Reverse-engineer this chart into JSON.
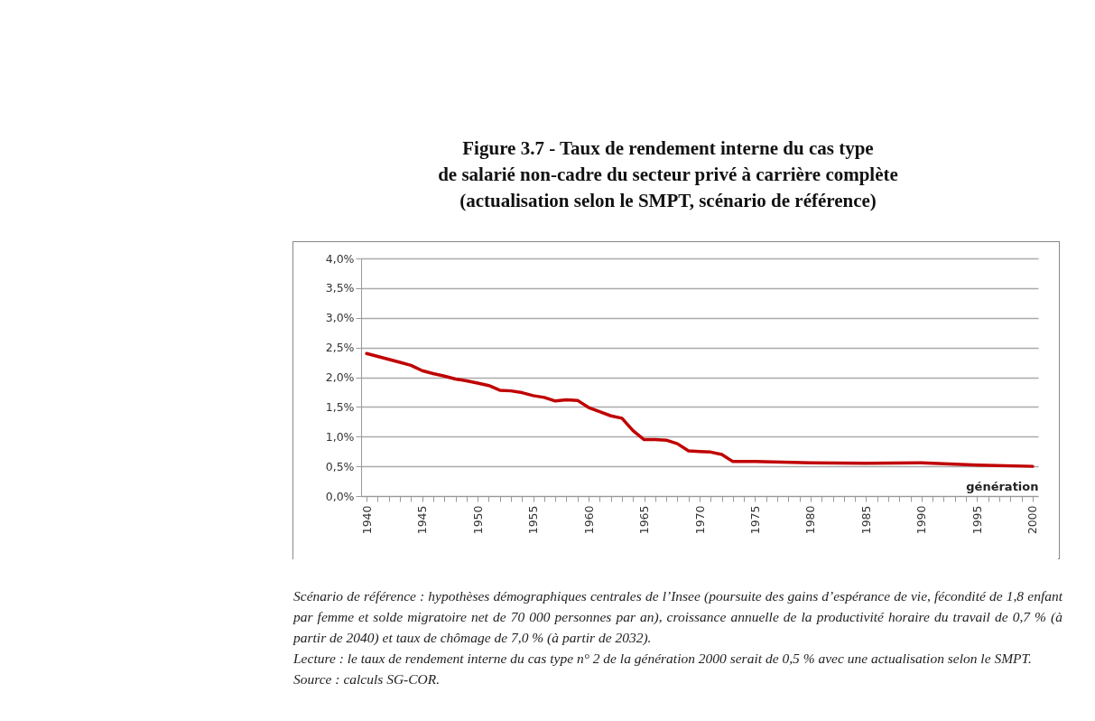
{
  "chart_data": {
    "type": "line",
    "title": "Figure 3.7 - Taux de rendement interne du cas type\nde salarié non-cadre du secteur privé à carrière complète",
    "subtitle": "(actualisation selon le SMPT, scénario de référence)",
    "xlabel": "génération",
    "x": [
      1940,
      1941,
      1942,
      1943,
      1944,
      1945,
      1946,
      1947,
      1948,
      1949,
      1950,
      1951,
      1952,
      1953,
      1954,
      1955,
      1956,
      1957,
      1958,
      1959,
      1960,
      1961,
      1962,
      1963,
      1964,
      1965,
      1966,
      1967,
      1968,
      1969,
      1970,
      1971,
      1972,
      1973,
      1975,
      1980,
      1985,
      1990,
      1995,
      2000
    ],
    "series": [
      {
        "color": "#c00000",
        "values": [
          2.4,
          2.35,
          2.3,
          2.25,
          2.2,
          2.11,
          2.06,
          2.02,
          1.97,
          1.94,
          1.9,
          1.86,
          1.78,
          1.77,
          1.74,
          1.69,
          1.66,
          1.6,
          1.62,
          1.61,
          1.49,
          1.42,
          1.35,
          1.31,
          1.1,
          0.95,
          0.95,
          0.94,
          0.88,
          0.76,
          0.75,
          0.74,
          0.7,
          0.58,
          0.58,
          0.56,
          0.55,
          0.56,
          0.52,
          0.5
        ]
      }
    ],
    "xlim": [
      1939.5,
      2000.5
    ],
    "xticks": [
      1940,
      {
        "value": 1941,
        "label": null
      },
      {
        "value": 1942,
        "label": null
      },
      {
        "value": 1943,
        "label": null
      },
      {
        "value": 1944,
        "label": null
      },
      1945,
      {
        "value": 1946,
        "label": null
      },
      {
        "value": 1947,
        "label": null
      },
      {
        "value": 1948,
        "label": null
      },
      {
        "value": 1949,
        "label": null
      },
      1950,
      {
        "value": 1951,
        "label": null
      },
      {
        "value": 1952,
        "label": null
      },
      {
        "value": 1953,
        "label": null
      },
      {
        "value": 1954,
        "label": null
      },
      1955,
      {
        "value": 1956,
        "label": null
      },
      {
        "value": 1957,
        "label": null
      },
      {
        "value": 1958,
        "label": null
      },
      {
        "value": 1959,
        "label": null
      },
      1960,
      {
        "value": 1961,
        "label": null
      },
      {
        "value": 1962,
        "label": null
      },
      {
        "value": 1963,
        "label": null
      },
      {
        "value": 1964,
        "label": null
      },
      1965,
      {
        "value": 1966,
        "label": null
      },
      {
        "value": 1967,
        "label": null
      },
      {
        "value": 1968,
        "label": null
      },
      {
        "value": 1969,
        "label": null
      },
      1970,
      {
        "value": 1971,
        "label": null
      },
      {
        "value": 1972,
        "label": null
      },
      {
        "value": 1973,
        "label": null
      },
      {
        "value": 1974,
        "label": null
      },
      1975,
      {
        "value": 1976,
        "label": null
      },
      {
        "value": 1977,
        "label": null
      },
      {
        "value": 1978,
        "label": null
      },
      {
        "value": 1979,
        "label": null
      },
      1980,
      {
        "value": 1981,
        "label": null
      },
      {
        "value": 1982,
        "label": null
      },
      {
        "value": 1983,
        "label": null
      },
      {
        "value": 1984,
        "label": null
      },
      1985,
      {
        "value": 1986,
        "label": null
      },
      {
        "value": 1987,
        "label": null
      },
      {
        "value": 1988,
        "label": null
      },
      {
        "value": 1989,
        "label": null
      },
      1990,
      {
        "value": 1991,
        "label": null
      },
      {
        "value": 1992,
        "label": null
      },
      {
        "value": 1993,
        "label": null
      },
      {
        "value": 1994,
        "label": null
      },
      1995,
      {
        "value": 1996,
        "label": null
      },
      {
        "value": 1997,
        "label": null
      },
      {
        "value": 1998,
        "label": null
      },
      {
        "value": 1999,
        "label": null
      },
      2000
    ],
    "ylim": [
      0,
      4
    ],
    "yticks": [
      {
        "value": 0,
        "label": "0,0%"
      },
      {
        "value": 0.5,
        "label": "0,5%"
      },
      {
        "value": 1,
        "label": "1,0%"
      },
      {
        "value": 1.5,
        "label": "1,5%"
      },
      {
        "value": 2,
        "label": "2,0%"
      },
      {
        "value": 2.5,
        "label": "2,5%"
      },
      {
        "value": 3,
        "label": "3,0%"
      },
      {
        "value": 3.5,
        "label": "3,5%"
      },
      {
        "value": 4,
        "label": "4,0%"
      }
    ],
    "grid": "y",
    "annotations": [
      "Scénario de référence : hypothèses démographiques centrales de l’Insee (poursuite des gains d’espérance de vie, fécondité de 1,8 enfant par femme et solde migratoire net de 70 000 personnes par an), croissance annuelle de la productivité horaire du travail de 0,7 % (à partir de 2040) et taux de chômage de 7,0 % (à partir de 2032).",
      "Lecture : le taux de rendement interne du cas type n° 2 de la génération 2000 serait de 0,5 % avec une actualisation selon le SMPT.",
      "Source : calculs SG-COR."
    ]
  }
}
